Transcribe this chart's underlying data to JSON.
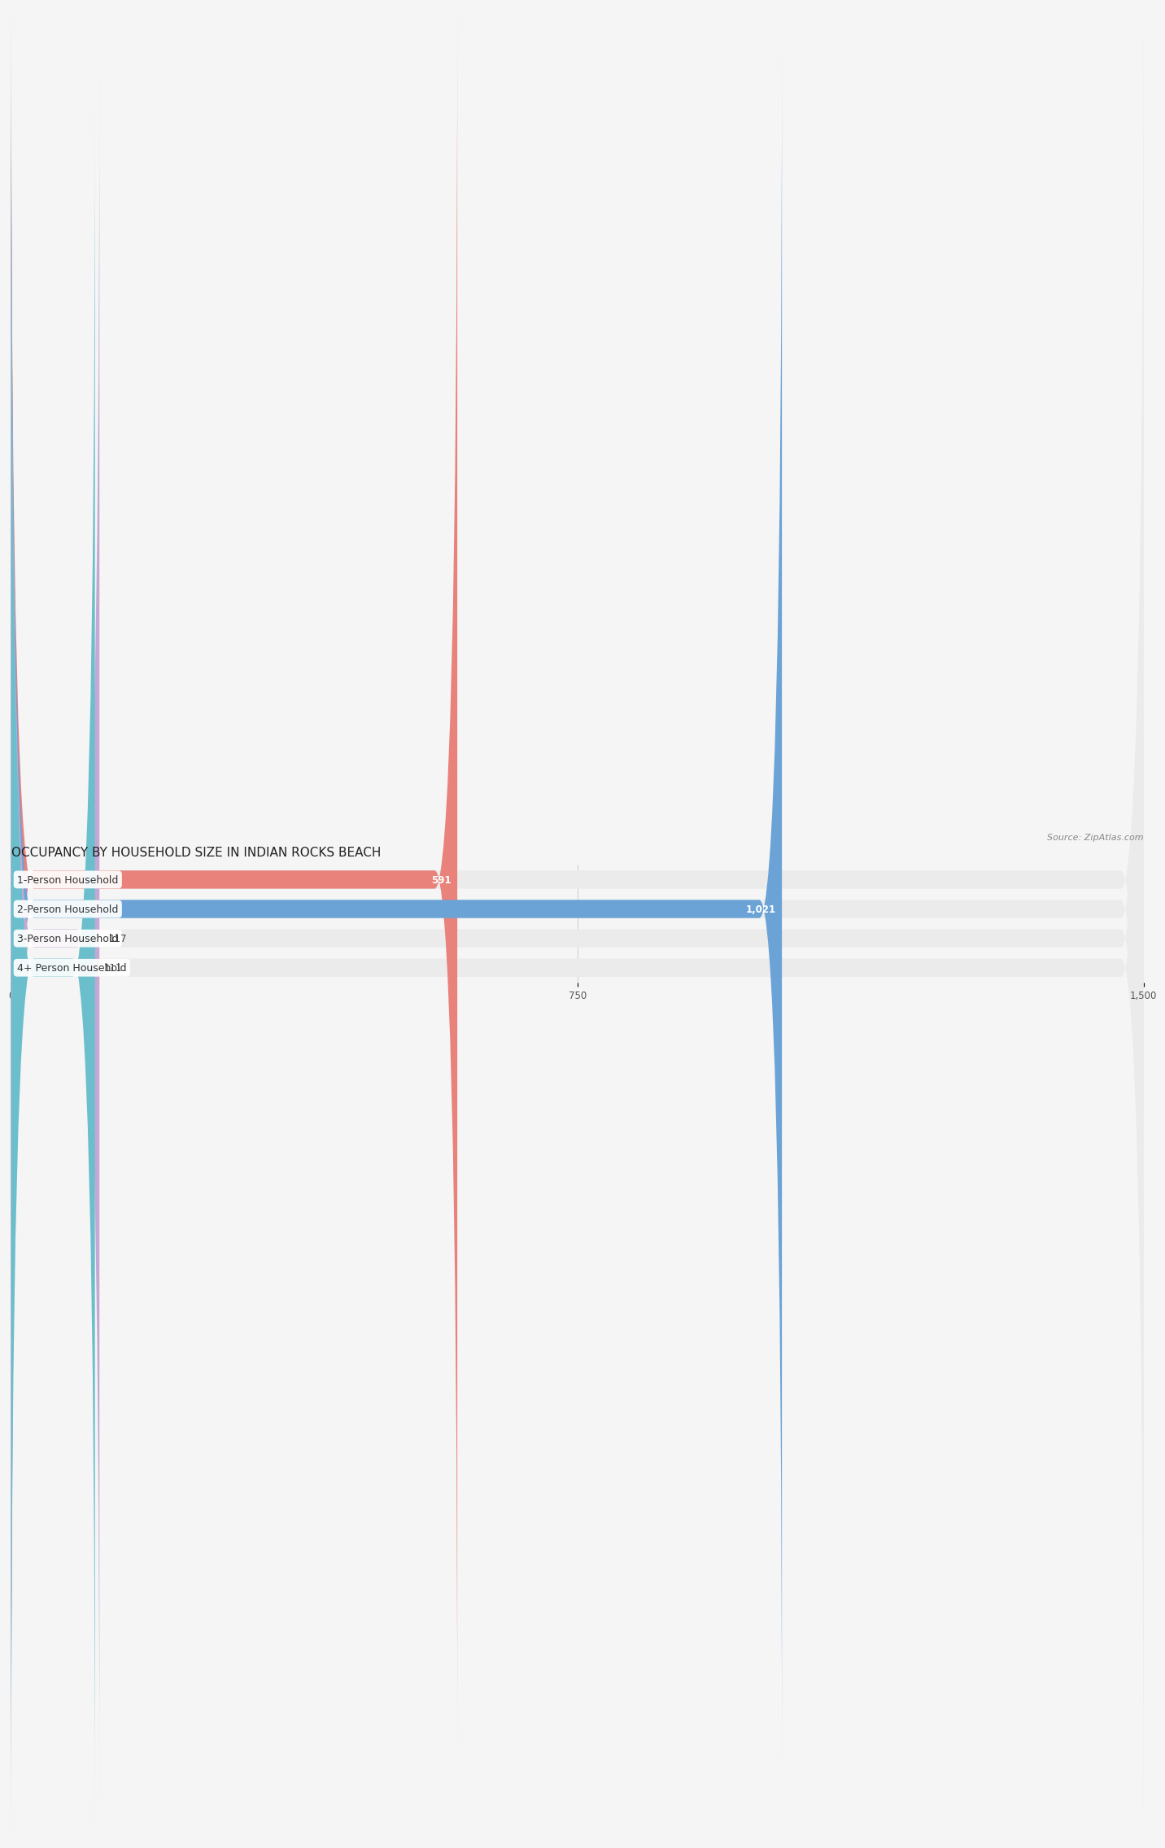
{
  "title": "OCCUPANCY BY HOUSEHOLD SIZE IN INDIAN ROCKS BEACH",
  "source": "Source: ZipAtlas.com",
  "categories": [
    "1-Person Household",
    "2-Person Household",
    "3-Person Household",
    "4+ Person Household"
  ],
  "values": [
    591,
    1021,
    117,
    111
  ],
  "bar_colors": [
    "#E8827B",
    "#6BA3D6",
    "#C4A8D4",
    "#6BBFCC"
  ],
  "bg_bar_color": "#EBEBEB",
  "xlim": [
    0,
    1500
  ],
  "xticks": [
    0,
    750,
    1500
  ],
  "title_fontsize": 11,
  "source_fontsize": 8,
  "label_fontsize": 9,
  "value_fontsize": 8.5,
  "bar_height": 0.62,
  "bar_gap": 1.0,
  "fig_bg": "#F5F5F5",
  "ax_bg": "#F5F5F5",
  "grid_color": "#CCCCCC",
  "label_bg": "#FFFFFF"
}
